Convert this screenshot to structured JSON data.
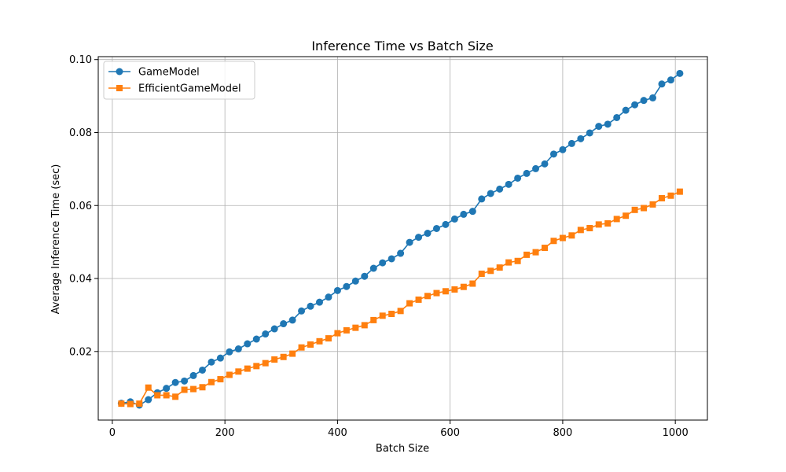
{
  "chart_data": {
    "type": "line",
    "title": "Inference Time vs Batch Size",
    "xlabel": "Batch Size",
    "ylabel": "Average Inference Time (sec)",
    "xlim": [
      -25,
      1057
    ],
    "ylim": [
      0.0012,
      0.1008
    ],
    "xticks": [
      0,
      200,
      400,
      600,
      800,
      1000
    ],
    "yticks": [
      0.02,
      0.04,
      0.06,
      0.08,
      0.1
    ],
    "xtick_labels": [
      "0",
      "200",
      "400",
      "600",
      "800",
      "1000"
    ],
    "ytick_labels": [
      "0.02",
      "0.04",
      "0.06",
      "0.08",
      "0.10"
    ],
    "grid": true,
    "legend_position": "upper-left",
    "x": [
      16,
      32,
      48,
      64,
      80,
      96,
      112,
      128,
      144,
      160,
      176,
      192,
      208,
      224,
      240,
      256,
      272,
      288,
      304,
      320,
      336,
      352,
      368,
      384,
      400,
      416,
      432,
      448,
      464,
      480,
      496,
      512,
      528,
      544,
      560,
      576,
      592,
      608,
      624,
      640,
      656,
      672,
      688,
      704,
      720,
      736,
      752,
      768,
      784,
      800,
      816,
      832,
      848,
      864,
      880,
      896,
      912,
      928,
      944,
      960,
      976,
      992,
      1008
    ],
    "series": [
      {
        "name": "GameModel",
        "color": "#1f77b4",
        "marker": "circle",
        "values": [
          0.0058,
          0.0062,
          0.0053,
          0.0068,
          0.0087,
          0.0099,
          0.0115,
          0.0119,
          0.0134,
          0.0149,
          0.0171,
          0.0182,
          0.0199,
          0.0207,
          0.0221,
          0.0234,
          0.0248,
          0.0262,
          0.0276,
          0.0286,
          0.0311,
          0.0324,
          0.0335,
          0.0349,
          0.0367,
          0.0378,
          0.0393,
          0.0406,
          0.0428,
          0.0443,
          0.0454,
          0.0469,
          0.0499,
          0.0513,
          0.0524,
          0.0537,
          0.0548,
          0.0563,
          0.0576,
          0.0584,
          0.0618,
          0.0633,
          0.0645,
          0.0658,
          0.0675,
          0.0688,
          0.0701,
          0.0714,
          0.0741,
          0.0753,
          0.077,
          0.0783,
          0.0799,
          0.0817,
          0.0823,
          0.0841,
          0.0861,
          0.0876,
          0.0888,
          0.0895,
          0.0933,
          0.0944,
          0.0962
        ]
      },
      {
        "name": "EfficientGameModel",
        "color": "#ff7f0e",
        "marker": "square",
        "values": [
          0.0057,
          0.0056,
          0.0057,
          0.0101,
          0.008,
          0.008,
          0.0076,
          0.0095,
          0.0097,
          0.0102,
          0.0116,
          0.0124,
          0.0136,
          0.0145,
          0.0153,
          0.016,
          0.0168,
          0.0178,
          0.0185,
          0.0194,
          0.0211,
          0.0219,
          0.0228,
          0.0236,
          0.025,
          0.0258,
          0.0265,
          0.0272,
          0.0286,
          0.0298,
          0.0303,
          0.0311,
          0.0332,
          0.0342,
          0.0352,
          0.036,
          0.0365,
          0.037,
          0.0377,
          0.0386,
          0.0413,
          0.0421,
          0.043,
          0.0444,
          0.0448,
          0.0465,
          0.0472,
          0.0484,
          0.0503,
          0.0511,
          0.0518,
          0.0533,
          0.0538,
          0.0548,
          0.0551,
          0.0563,
          0.0572,
          0.0588,
          0.0593,
          0.0603,
          0.062,
          0.0627,
          0.0638
        ]
      }
    ]
  }
}
